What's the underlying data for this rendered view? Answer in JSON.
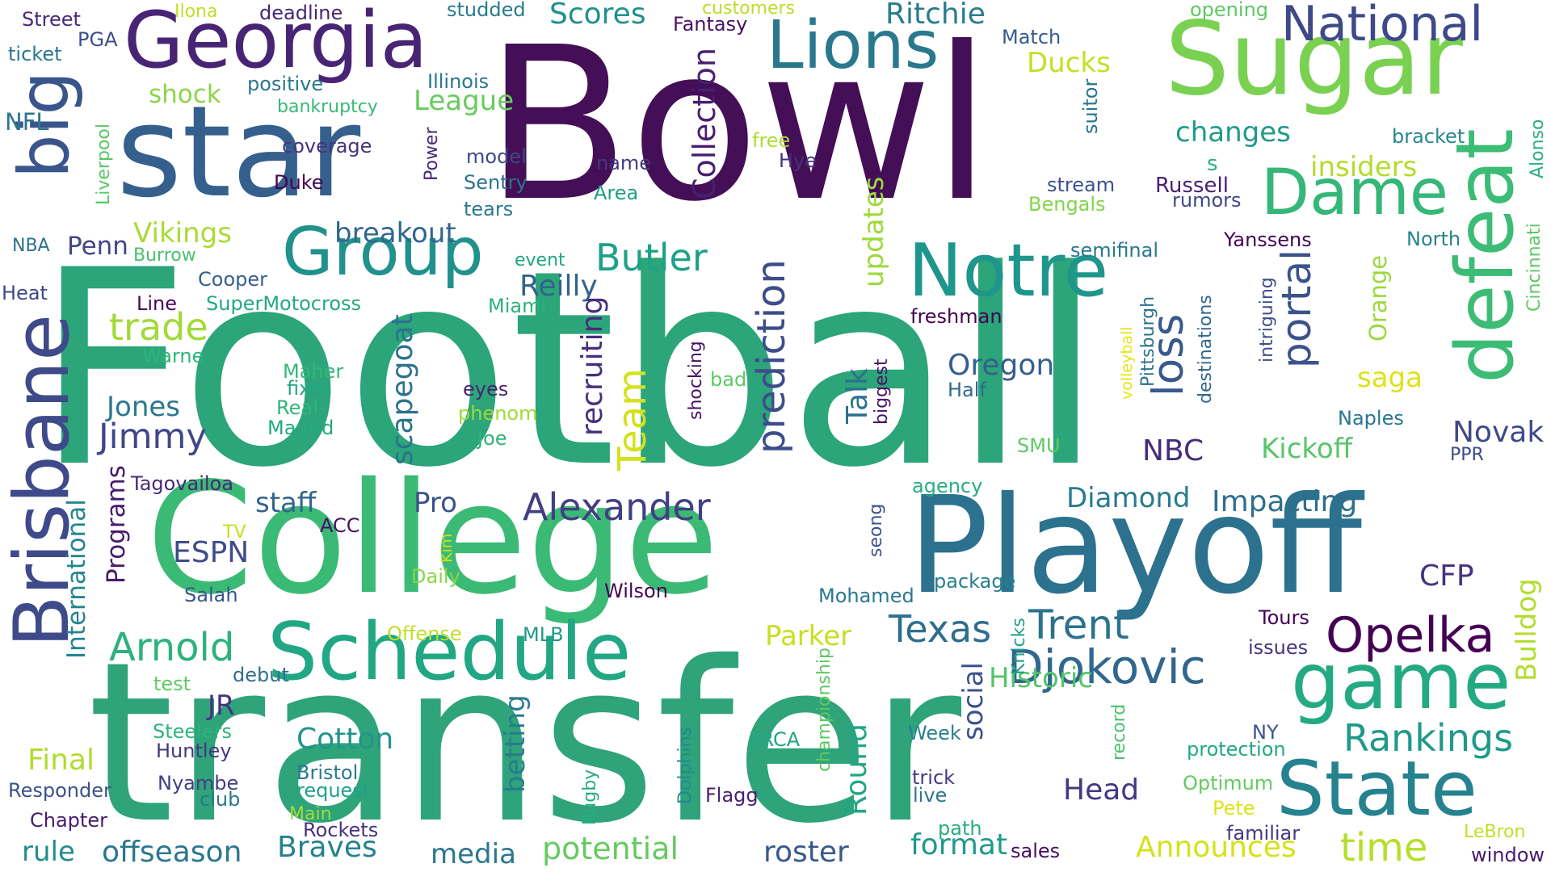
{
  "words": [
    {
      "text": "Football",
      "color": "#2ba579"
    },
    {
      "text": "Bowl",
      "color": "#440f56"
    },
    {
      "text": "transfer",
      "color": "#2fa37a"
    },
    {
      "text": "College",
      "color": "#3bba75"
    },
    {
      "text": "Playoff",
      "color": "#2c728e"
    },
    {
      "text": "star",
      "color": "#35608d"
    },
    {
      "text": "Sugar",
      "color": "#7ad151"
    },
    {
      "text": "Georgia",
      "color": "#482475"
    },
    {
      "text": "Schedule",
      "color": "#22a785"
    },
    {
      "text": "Notre",
      "color": "#1f968b"
    },
    {
      "text": "Group",
      "color": "#21918c"
    },
    {
      "text": "game",
      "color": "#24aa83"
    },
    {
      "text": "State",
      "color": "#26828e"
    },
    {
      "text": "defeat",
      "color": "#3cbc75"
    },
    {
      "text": "Dame",
      "color": "#35b779"
    },
    {
      "text": "Brisbane",
      "color": "#3e4a89"
    },
    {
      "text": "big",
      "color": "#39558c"
    },
    {
      "text": "Lions",
      "color": "#2a788e"
    },
    {
      "text": "National",
      "color": "#3e4989"
    },
    {
      "text": "Opelka",
      "color": "#440154"
    },
    {
      "text": "Djokovic",
      "color": "#31678e"
    },
    {
      "text": "time",
      "color": "#b5de2b"
    },
    {
      "text": "Rankings",
      "color": "#1f9a8a"
    },
    {
      "text": "Trent",
      "color": "#2c728e"
    },
    {
      "text": "Texas",
      "color": "#2e6e8e"
    },
    {
      "text": "Alexander",
      "color": "#423f85"
    },
    {
      "text": "Arnold",
      "color": "#2db27d"
    },
    {
      "text": "portal",
      "color": "#3b528b"
    },
    {
      "text": "loss",
      "color": "#38598c"
    },
    {
      "text": "prediction",
      "color": "#3d4d8a"
    },
    {
      "text": "Collection",
      "color": "#481f70"
    },
    {
      "text": "Team",
      "color": "#d2e21b"
    },
    {
      "text": "recruiting",
      "color": "#472d7b"
    },
    {
      "text": "scapegoat",
      "color": "#2c728e"
    },
    {
      "text": "Talk",
      "color": "#2c718e"
    },
    {
      "text": "Ritchie",
      "color": "#287d8e"
    },
    {
      "text": "Scores",
      "color": "#21918c"
    },
    {
      "text": "Jimmy",
      "color": "#3f4788"
    },
    {
      "text": "Butler",
      "color": "#1fa187"
    },
    {
      "text": "trade",
      "color": "#a2da37"
    },
    {
      "text": "Vikings",
      "color": "#a8db34"
    },
    {
      "text": "Reilly",
      "color": "#33638d"
    },
    {
      "text": "breakout",
      "color": "#31668e"
    },
    {
      "text": "updates",
      "color": "#9dd93b"
    },
    {
      "text": "changes",
      "color": "#1e9b8a"
    },
    {
      "text": "insiders",
      "color": "#b2dd2d"
    },
    {
      "text": "Orange",
      "color": "#9bd93c"
    },
    {
      "text": "saga",
      "color": "#dde318"
    },
    {
      "text": "Oregon",
      "color": "#355f8d"
    },
    {
      "text": "Jones",
      "color": "#2a788e"
    },
    {
      "text": "staff",
      "color": "#32658e"
    },
    {
      "text": "Pro",
      "color": "#3b528b"
    },
    {
      "text": "ESPN",
      "color": "#3e4c8a"
    },
    {
      "text": "Programs",
      "color": "#481b6d"
    },
    {
      "text": "International",
      "color": "#25858e"
    },
    {
      "text": "Diamond",
      "color": "#297b8e"
    },
    {
      "text": "Impacting",
      "color": "#2e6e8e"
    },
    {
      "text": "Kickoff",
      "color": "#56c667"
    },
    {
      "text": "NBC",
      "color": "#472c7a"
    },
    {
      "text": "Novak",
      "color": "#3e4989"
    },
    {
      "text": "CFP",
      "color": "#46337f"
    },
    {
      "text": "Bulldog",
      "color": "#b2dd2d"
    },
    {
      "text": "Historic",
      "color": "#54c568"
    },
    {
      "text": "Parker",
      "color": "#c8e020"
    },
    {
      "text": "Cotton",
      "color": "#1f958b"
    },
    {
      "text": "Final",
      "color": "#b0dd2f"
    },
    {
      "text": "JR",
      "color": "#46337f"
    },
    {
      "text": "betting",
      "color": "#287c8e"
    },
    {
      "text": "Round",
      "color": "#21a685"
    },
    {
      "text": "social",
      "color": "#3b518b"
    },
    {
      "text": "Head",
      "color": "#453781"
    },
    {
      "text": "media",
      "color": "#2a778e"
    },
    {
      "text": "potential",
      "color": "#65cb5e"
    },
    {
      "text": "roster",
      "color": "#38598c"
    },
    {
      "text": "format",
      "color": "#1f9a8a"
    },
    {
      "text": "Announces",
      "color": "#d5e21a"
    },
    {
      "text": "rule",
      "color": "#228d8d"
    },
    {
      "text": "offseason",
      "color": "#2a778e"
    },
    {
      "text": "Braves",
      "color": "#26828e"
    },
    {
      "text": "Penn",
      "color": "#414487"
    },
    {
      "text": "League",
      "color": "#67cc5c"
    },
    {
      "text": "Ducks",
      "color": "#c5e021"
    },
    {
      "text": "shock",
      "color": "#8bd646"
    },
    {
      "text": "NFL",
      "color": "#2b758e"
    },
    {
      "text": "PGA",
      "color": "#3d4e8a"
    },
    {
      "text": "Street",
      "color": "#482979"
    },
    {
      "text": "ticket",
      "color": "#2a788e"
    },
    {
      "text": "Ilona",
      "color": "#c2df23"
    },
    {
      "text": "deadline",
      "color": "#482576"
    },
    {
      "text": "studded",
      "color": "#297a8e"
    },
    {
      "text": "Illinois",
      "color": "#2a778e"
    },
    {
      "text": "positive",
      "color": "#2a788e"
    },
    {
      "text": "bankruptcy",
      "color": "#38b977"
    },
    {
      "text": "coverage",
      "color": "#46337f"
    },
    {
      "text": "Power",
      "color": "#482878"
    },
    {
      "text": "model",
      "color": "#3e4989"
    },
    {
      "text": "Sentry",
      "color": "#2c728e"
    },
    {
      "text": "tears",
      "color": "#2a788e"
    },
    {
      "text": "Duke",
      "color": "#440154"
    },
    {
      "text": "customers",
      "color": "#bade28"
    },
    {
      "text": "Fantasy",
      "color": "#471365"
    },
    {
      "text": "Match",
      "color": "#375b8d"
    },
    {
      "text": "opening",
      "color": "#5ec962"
    },
    {
      "text": "suitor",
      "color": "#2b748e"
    },
    {
      "text": "bracket",
      "color": "#24878e"
    },
    {
      "text": "Alonso",
      "color": "#2cb17e"
    },
    {
      "text": "Cincinnati",
      "color": "#5ec962"
    },
    {
      "text": "North",
      "color": "#25848e"
    },
    {
      "text": "Yanssens",
      "color": "#450457"
    },
    {
      "text": "stream",
      "color": "#3b528b"
    },
    {
      "text": "Russell",
      "color": "#482071"
    },
    {
      "text": "rumors",
      "color": "#3f4889"
    },
    {
      "text": "Bengals",
      "color": "#84d44b"
    },
    {
      "text": "semifinal",
      "color": "#2a788e"
    },
    {
      "text": "Pittsburgh",
      "color": "#2c738e"
    },
    {
      "text": "destinations",
      "color": "#31688e"
    },
    {
      "text": "intriguing",
      "color": "#3d4e8a"
    },
    {
      "text": "volleyball",
      "color": "#e5e419"
    },
    {
      "text": "Naples",
      "color": "#2a768e"
    },
    {
      "text": "PPR",
      "color": "#3e4a89"
    },
    {
      "text": "free",
      "color": "#addc30"
    },
    {
      "text": "Hye",
      "color": "#46327e"
    },
    {
      "text": "name",
      "color": "#453882"
    },
    {
      "text": "Area",
      "color": "#1f9e89"
    },
    {
      "text": "Liverpool",
      "color": "#5ac864"
    },
    {
      "text": "NBA",
      "color": "#2d718e"
    },
    {
      "text": "Burrow",
      "color": "#4ac16d"
    },
    {
      "text": "Heat",
      "color": "#3f4788"
    },
    {
      "text": "Cooper",
      "color": "#355f8d"
    },
    {
      "text": "Line",
      "color": "#46075a"
    },
    {
      "text": "SuperMotocross",
      "color": "#23a983"
    },
    {
      "text": "Miami",
      "color": "#2cb17e"
    },
    {
      "text": "event",
      "color": "#21a585"
    },
    {
      "text": "freshman",
      "color": "#440154"
    },
    {
      "text": "Warne",
      "color": "#2fb47c"
    },
    {
      "text": "Maher",
      "color": "#34b679"
    },
    {
      "text": "fixes",
      "color": "#22a785"
    },
    {
      "text": "Real",
      "color": "#31b57b"
    },
    {
      "text": "Madrid",
      "color": "#24aa83"
    },
    {
      "text": "eyes",
      "color": "#482475"
    },
    {
      "text": "phenom",
      "color": "#a0da39"
    },
    {
      "text": "Joe",
      "color": "#2fb47c"
    },
    {
      "text": "bad",
      "color": "#5ec962"
    },
    {
      "text": "shocking",
      "color": "#471164"
    },
    {
      "text": "biggest",
      "color": "#481467"
    },
    {
      "text": "Half",
      "color": "#30698e"
    },
    {
      "text": "SMU",
      "color": "#5ec962"
    },
    {
      "text": "agency",
      "color": "#27ad81"
    },
    {
      "text": "seong",
      "color": "#3b528b"
    },
    {
      "text": "package",
      "color": "#277f8e"
    },
    {
      "text": "Mohamed",
      "color": "#2a788e"
    },
    {
      "text": "Wilson",
      "color": "#440154"
    },
    {
      "text": "Daily",
      "color": "#89d548"
    },
    {
      "text": "Kim",
      "color": "#d0e11c"
    },
    {
      "text": "TV",
      "color": "#c5e021"
    },
    {
      "text": "Salah",
      "color": "#39568c"
    },
    {
      "text": "ACC",
      "color": "#471164"
    },
    {
      "text": "Tagovailoa",
      "color": "#482878"
    },
    {
      "text": "debut",
      "color": "#2d708e"
    },
    {
      "text": "test",
      "color": "#5ec962"
    },
    {
      "text": "Offense",
      "color": "#bddf26"
    },
    {
      "text": "MLB",
      "color": "#1f9a8a"
    },
    {
      "text": "Steelers",
      "color": "#2eb37c"
    },
    {
      "text": "Huntley",
      "color": "#443983"
    },
    {
      "text": "Nyambe",
      "color": "#433e85"
    },
    {
      "text": "club",
      "color": "#2a788e"
    },
    {
      "text": "Responder",
      "color": "#3b528b"
    },
    {
      "text": "Chapter",
      "color": "#481b6d"
    },
    {
      "text": "Bristol",
      "color": "#2a788e"
    },
    {
      "text": "request",
      "color": "#1fa188"
    },
    {
      "text": "Main",
      "color": "#a5db36"
    },
    {
      "text": "Rockets",
      "color": "#46327e"
    },
    {
      "text": "PRCA",
      "color": "#21a685"
    },
    {
      "text": "championship",
      "color": "#5ec962"
    },
    {
      "text": "Dolphins",
      "color": "#23898e"
    },
    {
      "text": "Rugby",
      "color": "#26ad81"
    },
    {
      "text": "Flagg",
      "color": "#481f70"
    },
    {
      "text": "Week",
      "color": "#26828e"
    },
    {
      "text": "trick",
      "color": "#443a83"
    },
    {
      "text": "live",
      "color": "#2a788e"
    },
    {
      "text": "path",
      "color": "#27ad81"
    },
    {
      "text": "sales",
      "color": "#470d60"
    },
    {
      "text": "Knicks",
      "color": "#1fa187"
    },
    {
      "text": "record",
      "color": "#4ac16d"
    },
    {
      "text": "NY",
      "color": "#3a548c"
    },
    {
      "text": "protection",
      "color": "#23a983"
    },
    {
      "text": "Optimum",
      "color": "#63cb5f"
    },
    {
      "text": "Pete",
      "color": "#dde318"
    },
    {
      "text": "familiar",
      "color": "#443983"
    },
    {
      "text": "Tours",
      "color": "#440154"
    },
    {
      "text": "issues",
      "color": "#46327e"
    },
    {
      "text": "LeBron",
      "color": "#c0df25"
    },
    {
      "text": "window",
      "color": "#481b6d"
    },
    {
      "text": "s",
      "color": "#2ab07f"
    }
  ]
}
